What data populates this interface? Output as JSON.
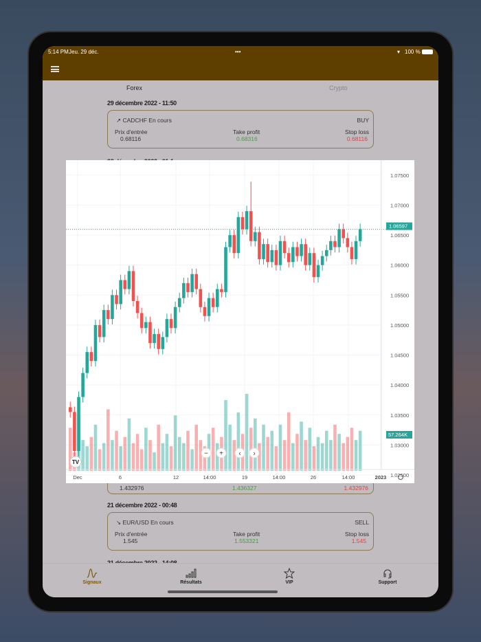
{
  "status": {
    "time": "5:14 PM",
    "date": "Jeu. 29 déc.",
    "battery": "100 %"
  },
  "tabs": [
    {
      "label": "Forex",
      "active": true
    },
    {
      "label": "Crypto",
      "active": false
    }
  ],
  "signals": [
    {
      "date": "29 décembre 2022 - 11:50",
      "pair": "CADCHF En cours",
      "side": "BUY",
      "trend": "up",
      "entry_label": "Prix d'entrée",
      "entry": "0.68116",
      "tp_label": "Take profit",
      "tp": "0.68316",
      "sl_label": "Stop loss",
      "sl": "0.68116"
    },
    {
      "date": "28 décembre 2022 - 01:1",
      "entry": "1.432976",
      "tp": "1.436327",
      "sl": "1.432976"
    },
    {
      "date": "21 décembre 2022 - 00:48",
      "pair": "EUR/USD En cours",
      "side": "SELL",
      "trend": "down",
      "entry_label": "Prix d'entrée",
      "entry": "1.545",
      "tp_label": "Take profit",
      "tp": "1.553321",
      "sl_label": "Stop loss",
      "sl": "1.545"
    },
    {
      "date": "21 décembre 2022 - 14:08"
    }
  ],
  "nav": [
    {
      "label": "Signaux",
      "icon": "signal-wave-icon",
      "active": true
    },
    {
      "label": "Résultats",
      "icon": "bar-chart-icon"
    },
    {
      "label": "VIP",
      "icon": "star-icon"
    },
    {
      "label": "Support",
      "icon": "headset-icon"
    }
  ],
  "colors": {
    "header": "#5e3f00",
    "up": "#26a69a",
    "down": "#ef5350",
    "active_nav": "#7a5a10"
  },
  "chart_data": {
    "type": "candlestick",
    "y_ticks": [
      "1.07500",
      "1.07000",
      "1.06500",
      "1.06000",
      "1.05500",
      "1.05000",
      "1.04500",
      "1.04000",
      "1.03500",
      "1.03000",
      "1.02500"
    ],
    "ylim": [
      1.025,
      1.0775
    ],
    "x_ticks": [
      "Dec",
      "6",
      "12",
      "14:00",
      "19",
      "14:00",
      "26",
      "14:00",
      "2023"
    ],
    "last_price": "1.06597",
    "last_volume": "57.264K",
    "grid": true,
    "close": [
      1.0355,
      1.029,
      1.038,
      1.042,
      1.0455,
      1.044,
      1.05,
      1.048,
      1.0525,
      1.051,
      1.055,
      1.0535,
      1.0575,
      1.056,
      1.059,
      1.054,
      1.052,
      1.0495,
      1.0505,
      1.047,
      1.0485,
      1.046,
      1.048,
      1.051,
      1.0495,
      1.053,
      1.0545,
      1.057,
      1.0555,
      1.0585,
      1.056,
      1.053,
      1.0515,
      1.0545,
      1.053,
      1.056,
      1.0555,
      1.063,
      1.065,
      1.062,
      1.068,
      1.066,
      1.069,
      1.064,
      1.0655,
      1.061,
      1.0635,
      1.0605,
      1.0625,
      1.06,
      1.064,
      1.062,
      1.0605,
      1.063,
      1.0615,
      1.0635,
      1.06,
      1.062,
      1.058,
      1.06,
      1.0615,
      1.0625,
      1.064,
      1.063,
      1.066,
      1.0645,
      1.063,
      1.061,
      1.064,
      1.066
    ],
    "volume": [
      28,
      12,
      36,
      20,
      16,
      22,
      30,
      14,
      18,
      40,
      20,
      26,
      16,
      22,
      34,
      18,
      24,
      14,
      28,
      20,
      12,
      30,
      18,
      24,
      16,
      36,
      22,
      18,
      26,
      14,
      30,
      20,
      16,
      24,
      28,
      18,
      22,
      46,
      30,
      20,
      38,
      24,
      50,
      28,
      34,
      18,
      30,
      22,
      26,
      16,
      30,
      20,
      38,
      18,
      24,
      32,
      20,
      28,
      16,
      22,
      18,
      26,
      20,
      30,
      24,
      18,
      22,
      28,
      20,
      26
    ]
  }
}
